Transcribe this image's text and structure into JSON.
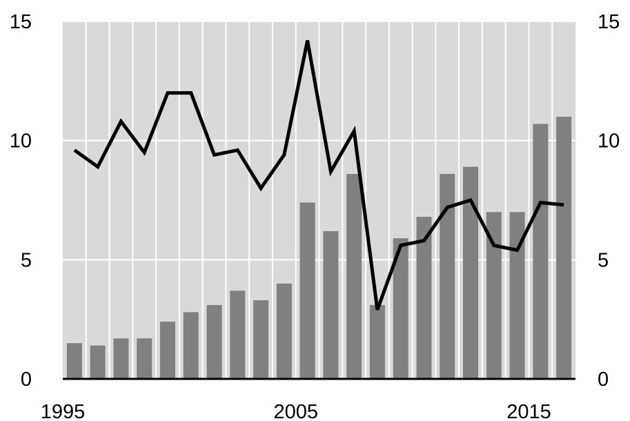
{
  "chart_data": {
    "type": "bar",
    "title": "",
    "xlabel": "",
    "ylabel": "",
    "x": [
      1995,
      1996,
      1997,
      1998,
      1999,
      2000,
      2001,
      2002,
      2003,
      2004,
      2005,
      2006,
      2007,
      2008,
      2009,
      2010,
      2011,
      2012,
      2013,
      2014,
      2015,
      2016
    ],
    "x_tick_labels": [
      "1995",
      "2005",
      "2015"
    ],
    "y_left_tick_labels": [
      "0",
      "5",
      "10",
      "15"
    ],
    "y_right_tick_labels": [
      "0",
      "5",
      "10",
      "15"
    ],
    "ylim": [
      0,
      15
    ],
    "grid": true,
    "legend": "none",
    "series": [
      {
        "type": "bar",
        "axis": "left",
        "values": [
          1.5,
          1.4,
          1.7,
          1.7,
          2.4,
          2.8,
          3.1,
          3.7,
          3.3,
          4.0,
          7.4,
          6.2,
          8.6,
          3.1,
          5.9,
          6.8,
          8.6,
          8.9,
          7.0,
          7.0,
          10.7,
          11.0
        ]
      },
      {
        "type": "line",
        "axis": "right",
        "values": [
          9.6,
          8.9,
          10.8,
          9.5,
          12.0,
          12.0,
          9.4,
          9.6,
          8.0,
          9.4,
          14.2,
          8.7,
          10.4,
          2.9,
          5.6,
          5.8,
          7.2,
          7.5,
          5.6,
          5.4,
          7.4,
          7.3
        ]
      }
    ],
    "colors": {
      "plot_background": "#d9d9d9",
      "gridline": "#ffffff",
      "bar": "#808080",
      "line": "#000000",
      "text": "#000000"
    }
  }
}
